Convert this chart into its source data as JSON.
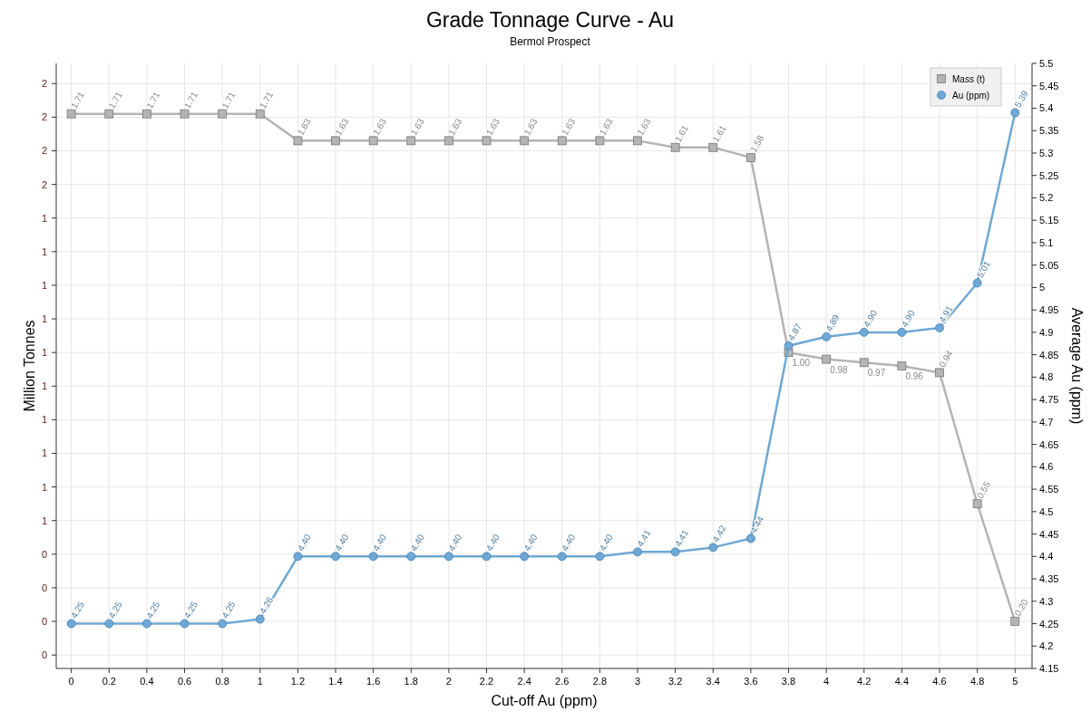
{
  "chart_data": {
    "type": "line",
    "title": "Grade Tonnage Curve - Au",
    "subtitle": "Bermol Prospect",
    "xlabel": "Cut-off Au (ppm)",
    "ylabel": "Million Tonnes",
    "y2label": "Average Au (ppm)",
    "x": [
      0,
      0.2,
      0.4,
      0.6,
      0.8,
      1,
      1.2,
      1.4,
      1.6,
      1.8,
      2,
      2.2,
      2.4,
      2.6,
      2.8,
      3,
      3.2,
      3.4,
      3.6,
      3.8,
      4,
      4.2,
      4.4,
      4.6,
      4.8,
      5
    ],
    "xlim": [
      -0.08,
      5.09
    ],
    "xticks": [
      0,
      0.2,
      0.4,
      0.6,
      0.8,
      1,
      1.2,
      1.4,
      1.6,
      1.8,
      2,
      2.2,
      2.4,
      2.6,
      2.8,
      3,
      3.2,
      3.4,
      3.6,
      3.8,
      4,
      4.2,
      4.4,
      4.6,
      4.8,
      5
    ],
    "ylim": [
      0.06,
      1.86
    ],
    "yticks": [
      {
        "value": 0.1,
        "label": "0"
      },
      {
        "value": 0.2,
        "label": "0"
      },
      {
        "value": 0.3,
        "label": "0"
      },
      {
        "value": 0.4,
        "label": "0"
      },
      {
        "value": 0.5,
        "label": "1"
      },
      {
        "value": 0.6,
        "label": "1"
      },
      {
        "value": 0.7,
        "label": "1"
      },
      {
        "value": 0.8,
        "label": "1"
      },
      {
        "value": 0.9,
        "label": "1"
      },
      {
        "value": 1.0,
        "label": "1"
      },
      {
        "value": 1.1,
        "label": "1"
      },
      {
        "value": 1.2,
        "label": "1"
      },
      {
        "value": 1.3,
        "label": "1"
      },
      {
        "value": 1.4,
        "label": "1"
      },
      {
        "value": 1.5,
        "label": "2"
      },
      {
        "value": 1.6,
        "label": "2"
      },
      {
        "value": 1.7,
        "label": "2"
      },
      {
        "value": 1.8,
        "label": "2"
      }
    ],
    "y2lim": [
      4.15,
      5.5
    ],
    "y2ticks": [
      4.15,
      4.2,
      4.25,
      4.3,
      4.35,
      4.4,
      4.45,
      4.5,
      4.55,
      4.6,
      4.65,
      4.7,
      4.75,
      4.8,
      4.85,
      4.9,
      4.95,
      5,
      5.05,
      5.1,
      5.15,
      5.2,
      5.25,
      5.3,
      5.35,
      5.4,
      5.45,
      5.5
    ],
    "grid": true,
    "legend": "top right",
    "series": [
      {
        "name": "Mass (t)",
        "color": "#b4b4b4",
        "marker": "square",
        "values": [
          1.71,
          1.71,
          1.71,
          1.71,
          1.71,
          1.71,
          1.63,
          1.63,
          1.63,
          1.63,
          1.63,
          1.63,
          1.63,
          1.63,
          1.63,
          1.63,
          1.61,
          1.61,
          1.58,
          1.0,
          0.98,
          0.97,
          0.96,
          0.94,
          0.55,
          0.2
        ],
        "value_labels": [
          "1.71",
          "1.71",
          "1.71",
          "1.71",
          "1.71",
          "1.71",
          "1.63",
          "1.63",
          "1.63",
          "1.63",
          "1.63",
          "1.63",
          "1.63",
          "1.63",
          "1.63",
          "1.63",
          "1.61",
          "1.61",
          "1.58",
          "1.00",
          "0.98",
          "0.97",
          "0.96",
          "0.94",
          "0.55",
          "0.20"
        ]
      },
      {
        "name": "Au (ppm)",
        "color": "#6fa8d4",
        "marker": "circle",
        "axis": "y2",
        "values": [
          4.25,
          4.25,
          4.25,
          4.25,
          4.25,
          4.26,
          4.4,
          4.4,
          4.4,
          4.4,
          4.4,
          4.4,
          4.4,
          4.4,
          4.4,
          4.41,
          4.41,
          4.42,
          4.44,
          4.87,
          4.89,
          4.9,
          4.9,
          4.91,
          5.01,
          5.39
        ],
        "value_labels": [
          "4.25",
          "4.25",
          "4.25",
          "4.25",
          "4.25",
          "4.26",
          "4.40",
          "4.40",
          "4.40",
          "4.40",
          "4.40",
          "4.40",
          "4.40",
          "4.40",
          "4.40",
          "4.41",
          "4.41",
          "4.42",
          "4.44",
          "4.87",
          "4.89",
          "4.90",
          "4.90",
          "4.91",
          "5.01",
          "5.39"
        ]
      }
    ]
  }
}
